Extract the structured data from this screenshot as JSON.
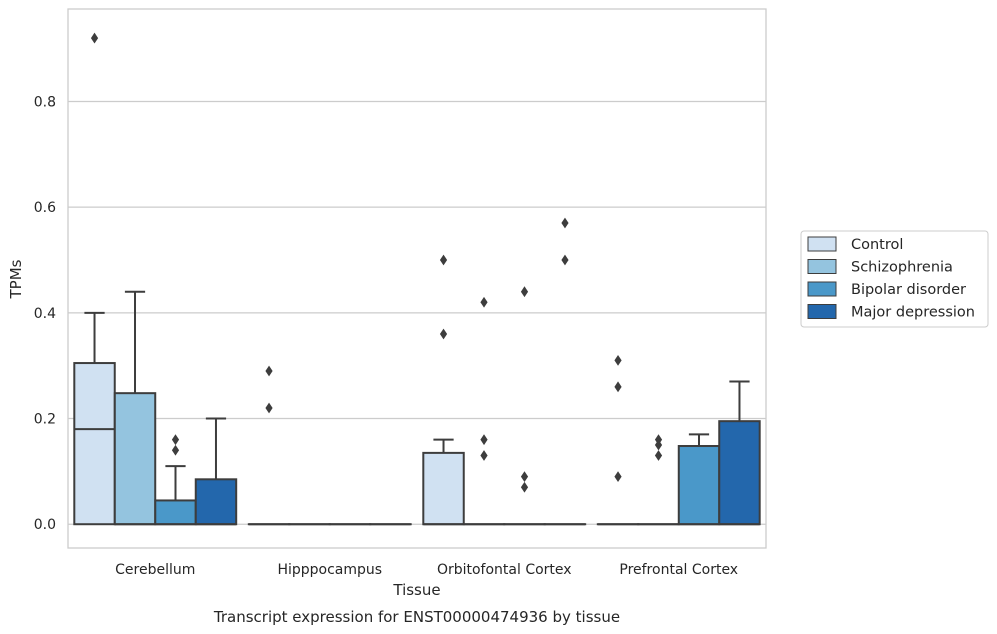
{
  "chart_data": {
    "type": "box",
    "title": "",
    "caption": "Transcript expression for ENST00000474936 by tissue",
    "xlabel": "Tissue",
    "ylabel": "TPMs",
    "ylim": [
      -0.045,
      0.975
    ],
    "yticks": [
      "0.0",
      "0.2",
      "0.4",
      "0.6",
      "0.8"
    ],
    "ytick_values": [
      0.0,
      0.2,
      0.4,
      0.6,
      0.8
    ],
    "grid": "horizontal",
    "legend_placement": "right",
    "categories": [
      "Cerebellum",
      "Hipppocampus",
      "Orbitofontal Cortex",
      "Prefrontal Cortex"
    ],
    "series": [
      {
        "name": "Control",
        "color": "#d0e1f2",
        "boxes": [
          {
            "q1": 0.0,
            "median": 0.18,
            "q3": 0.305,
            "whisker_low": 0.0,
            "whisker_high": 0.4,
            "outliers": [
              0.92
            ]
          },
          {
            "q1": 0.0,
            "median": 0.0,
            "q3": 0.0,
            "whisker_low": 0.0,
            "whisker_high": 0.0,
            "outliers": [
              0.22,
              0.29
            ]
          },
          {
            "q1": 0.0,
            "median": 0.0,
            "q3": 0.135,
            "whisker_low": 0.0,
            "whisker_high": 0.16,
            "outliers": [
              0.36,
              0.5
            ]
          },
          {
            "q1": 0.0,
            "median": 0.0,
            "q3": 0.0,
            "whisker_low": 0.0,
            "whisker_high": 0.0,
            "outliers": [
              0.09,
              0.26,
              0.31
            ]
          }
        ]
      },
      {
        "name": "Schizophrenia",
        "color": "#94c4df",
        "boxes": [
          {
            "q1": 0.0,
            "median": 0.0,
            "q3": 0.248,
            "whisker_low": 0.0,
            "whisker_high": 0.44,
            "outliers": []
          },
          {
            "q1": 0.0,
            "median": 0.0,
            "q3": 0.0,
            "whisker_low": 0.0,
            "whisker_high": 0.0,
            "outliers": []
          },
          {
            "q1": 0.0,
            "median": 0.0,
            "q3": 0.0,
            "whisker_low": 0.0,
            "whisker_high": 0.0,
            "outliers": [
              0.13,
              0.16,
              0.42
            ]
          },
          {
            "q1": 0.0,
            "median": 0.0,
            "q3": 0.0,
            "whisker_low": 0.0,
            "whisker_high": 0.0,
            "outliers": [
              0.13,
              0.15,
              0.16
            ]
          }
        ]
      },
      {
        "name": "Bipolar disorder",
        "color": "#4a98c9",
        "boxes": [
          {
            "q1": 0.0,
            "median": 0.0,
            "q3": 0.045,
            "whisker_low": 0.0,
            "whisker_high": 0.11,
            "outliers": [
              0.14,
              0.16
            ]
          },
          {
            "q1": 0.0,
            "median": 0.0,
            "q3": 0.0,
            "whisker_low": 0.0,
            "whisker_high": 0.0,
            "outliers": []
          },
          {
            "q1": 0.0,
            "median": 0.0,
            "q3": 0.0,
            "whisker_low": 0.0,
            "whisker_high": 0.0,
            "outliers": [
              0.07,
              0.09,
              0.44
            ]
          },
          {
            "q1": 0.0,
            "median": 0.0,
            "q3": 0.148,
            "whisker_low": 0.0,
            "whisker_high": 0.17,
            "outliers": []
          }
        ]
      },
      {
        "name": "Major depression",
        "color": "#2367ac",
        "boxes": [
          {
            "q1": 0.0,
            "median": 0.0,
            "q3": 0.085,
            "whisker_low": 0.0,
            "whisker_high": 0.2,
            "outliers": []
          },
          {
            "q1": 0.0,
            "median": 0.0,
            "q3": 0.0,
            "whisker_low": 0.0,
            "whisker_high": 0.0,
            "outliers": []
          },
          {
            "q1": 0.0,
            "median": 0.0,
            "q3": 0.0,
            "whisker_low": 0.0,
            "whisker_high": 0.0,
            "outliers": [
              0.5,
              0.57
            ]
          },
          {
            "q1": 0.0,
            "median": 0.0,
            "q3": 0.195,
            "whisker_low": 0.0,
            "whisker_high": 0.27,
            "outliers": []
          }
        ]
      }
    ]
  }
}
